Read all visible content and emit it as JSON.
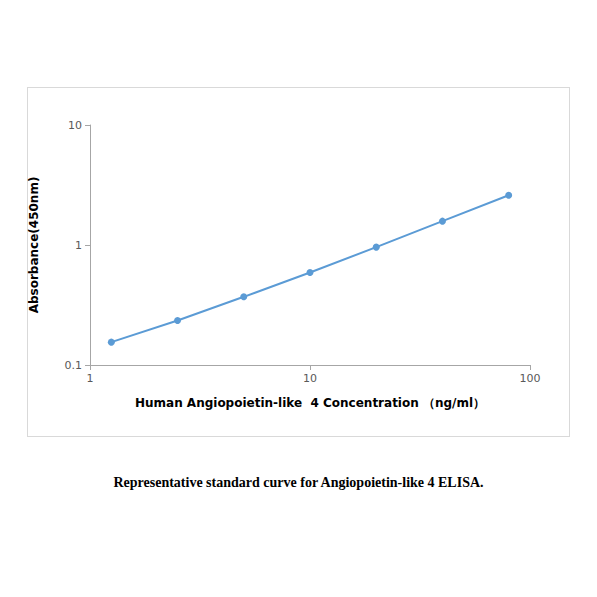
{
  "chart_data": {
    "type": "line",
    "title": "Representative standard curve for Angiopoietin-like 4 ELISA.",
    "x_label": "Human Angiopoietin-like  4 Concentration （ng/ml）",
    "y_label": "Absorbance(450nm)",
    "x": [
      1.25,
      2.5,
      5,
      10,
      20,
      40,
      80
    ],
    "values": [
      0.155,
      0.235,
      0.37,
      0.59,
      0.96,
      1.58,
      2.6
    ],
    "color": "#5b9bd5",
    "marker": "circle",
    "log": true,
    "grid": false,
    "xlim": [
      1,
      100
    ],
    "xticks": [
      1,
      10,
      100
    ],
    "ylim": [
      0.1,
      10
    ],
    "yticks": [
      0.1,
      1,
      10
    ]
  }
}
